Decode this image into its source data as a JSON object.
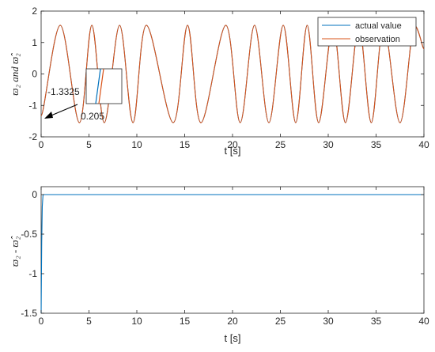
{
  "chart_data": [
    {
      "type": "line",
      "xlabel": "t [s]",
      "ylabel": "ϖ₂ and ϖ̂₂",
      "xlim": [
        0,
        40
      ],
      "ylim": [
        -2,
        2
      ],
      "xticks": [
        "0",
        "5",
        "10",
        "15",
        "20",
        "25",
        "30",
        "35",
        "40"
      ],
      "yticks": [
        "2",
        "1",
        "0",
        "-1",
        "-2"
      ],
      "grid": false,
      "legend_position": "top-right",
      "series": [
        {
          "name": "actual value",
          "color": "#0072BD",
          "x": [
            0,
            2,
            4,
            5.3,
            6.6,
            8.2,
            9.6,
            11,
            13.8,
            15.3,
            16.7,
            19.3,
            20.8,
            22.3,
            23.8,
            25.3,
            26.6,
            27.8,
            29,
            30.5,
            31.8,
            33.2,
            34.5,
            35.8,
            37.5,
            39,
            40
          ],
          "y": [
            -1.3325,
            1.55,
            -1.55,
            1.55,
            -1.55,
            1.55,
            -1.55,
            1.55,
            -1.55,
            1.55,
            -1.55,
            1.55,
            -1.55,
            1.55,
            -1.55,
            1.55,
            -1.55,
            1.55,
            -1.55,
            1.55,
            -1.55,
            1.55,
            -1.55,
            1.55,
            -1.55,
            1.55,
            0.8
          ]
        },
        {
          "name": "observation",
          "color": "#D95319",
          "x": [
            0,
            2,
            4,
            5.3,
            6.6,
            8.2,
            9.6,
            11,
            13.8,
            15.3,
            16.7,
            19.3,
            20.8,
            22.3,
            23.8,
            25.3,
            26.6,
            27.8,
            29,
            30.5,
            31.8,
            33.2,
            34.5,
            35.8,
            37.5,
            39,
            40
          ],
          "y": [
            -1.3325,
            1.55,
            -1.55,
            1.55,
            -1.55,
            1.55,
            -1.55,
            1.55,
            -1.55,
            1.55,
            -1.55,
            1.55,
            -1.55,
            1.55,
            -1.55,
            1.55,
            -1.55,
            1.55,
            -1.55,
            1.55,
            -1.55,
            1.55,
            -1.55,
            1.55,
            -1.55,
            1.55,
            0.8
          ]
        }
      ],
      "annotations": [
        {
          "text": "-1.3325",
          "x": 0,
          "y": -1.3325
        },
        {
          "text": "0.205"
        }
      ]
    },
    {
      "type": "line",
      "xlabel": "t [s]",
      "ylabel": "ϖ₂ - ϖ̂₂",
      "xlim": [
        0,
        40
      ],
      "ylim": [
        -1.5,
        0.1
      ],
      "xticks": [
        "0",
        "5",
        "10",
        "15",
        "20",
        "25",
        "30",
        "35",
        "40"
      ],
      "yticks": [
        "0",
        "-0.5",
        "-1",
        "-1.5"
      ],
      "grid": false,
      "series": [
        {
          "color": "#0072BD",
          "x": [
            0,
            0.02,
            0.06,
            0.12,
            0.2,
            40
          ],
          "y": [
            -1.5,
            -1.2,
            -0.6,
            -0.15,
            0,
            0
          ]
        }
      ]
    }
  ]
}
